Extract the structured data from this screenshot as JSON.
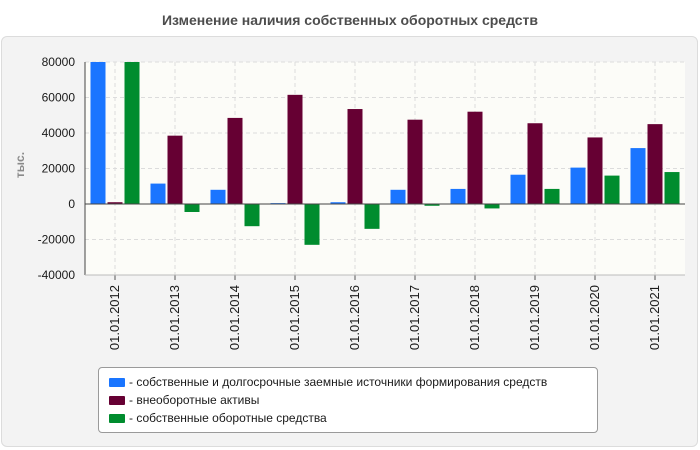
{
  "chart_data": {
    "type": "bar",
    "title": "Изменение наличия собственных оборотных средств",
    "ylabel": "тыс.",
    "ylim": [
      -40000,
      80000
    ],
    "yticks": [
      "80000",
      "60000",
      "40000",
      "20000",
      "0",
      "-20000",
      "-40000"
    ],
    "categories": [
      "01.01.2012",
      "01.01.2013",
      "01.01.2014",
      "01.01.2015",
      "01.01.2016",
      "01.01.2017",
      "01.01.2018",
      "01.01.2019",
      "01.01.2020",
      "01.01.2021"
    ],
    "series": [
      {
        "name": "- собственные и долгосрочные заемные источники формирования средств",
        "color": "#1a75ff",
        "values": [
          80000,
          11500,
          8000,
          500,
          1000,
          8000,
          8500,
          16500,
          20500,
          31500
        ]
      },
      {
        "name": "- внеоборотные активы",
        "color": "#660033",
        "values": [
          1000,
          38500,
          48500,
          61500,
          53500,
          47500,
          52000,
          45500,
          37500,
          45000
        ]
      },
      {
        "name": "- собственные оборотные средства",
        "color": "#008c2e",
        "values": [
          80000,
          -4500,
          -12500,
          -23000,
          -14000,
          -1000,
          -2500,
          8500,
          16000,
          18000
        ]
      }
    ],
    "grid": true,
    "legend_position": "bottom"
  }
}
